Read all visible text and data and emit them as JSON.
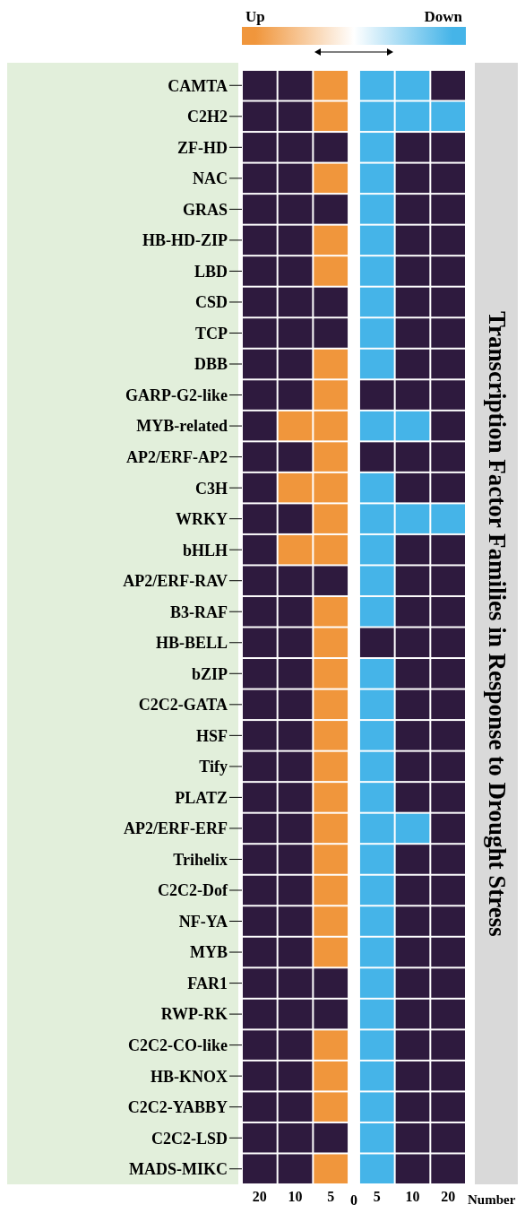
{
  "chart_data": {
    "type": "heatmap",
    "xlabel": "Number",
    "ylabel": "Transcription Factor Families in Response to Drought Stress",
    "annotations": [
      "0"
    ],
    "categories": [
      "20",
      "10",
      "5",
      "5",
      "10",
      "20"
    ],
    "y_categories": [
      "CAMTA",
      "C2H2",
      "ZF-HD",
      "NAC",
      "GRAS",
      "HB-HD-ZIP",
      "LBD",
      "CSD",
      "TCP",
      "DBB",
      "GARP-G2-like",
      "MYB-related",
      "AP2/ERF-AP2",
      "C3H",
      "WRKY",
      "bHLH",
      "AP2/ERF-RAV",
      "B3-RAF",
      "HB-BELL",
      "bZIP",
      "C2C2-GATA",
      "HSF",
      "Tify",
      "PLATZ",
      "AP2/ERF-ERF",
      "Trihelix",
      "C2C2-Dof",
      "NF-YA",
      "MYB",
      "FAR1",
      "RWP-RK",
      "C2C2-CO-like",
      "HB-KNOX",
      "C2C2-YABBY",
      "C2C2-LSD",
      "MADS-MIKC"
    ],
    "cells": [
      [
        null,
        null,
        1,
        -1,
        -1,
        null
      ],
      [
        null,
        null,
        1,
        -1,
        -1,
        -1
      ],
      [
        null,
        null,
        null,
        -1,
        null,
        null
      ],
      [
        null,
        null,
        1,
        -1,
        null,
        null
      ],
      [
        null,
        null,
        null,
        -1,
        null,
        null
      ],
      [
        null,
        null,
        1,
        -1,
        null,
        null
      ],
      [
        null,
        null,
        1,
        -1,
        null,
        null
      ],
      [
        null,
        null,
        null,
        -1,
        null,
        null
      ],
      [
        null,
        null,
        null,
        -1,
        null,
        null
      ],
      [
        null,
        null,
        1,
        -1,
        null,
        null
      ],
      [
        null,
        null,
        1,
        null,
        null,
        null
      ],
      [
        null,
        1,
        1,
        -1,
        -1,
        null
      ],
      [
        null,
        null,
        1,
        null,
        null,
        null
      ],
      [
        null,
        1,
        1,
        -1,
        null,
        null
      ],
      [
        null,
        null,
        1,
        -1,
        -1,
        -1
      ],
      [
        null,
        1,
        1,
        -1,
        null,
        null
      ],
      [
        null,
        null,
        null,
        -1,
        null,
        null
      ],
      [
        null,
        null,
        1,
        -1,
        null,
        null
      ],
      [
        null,
        null,
        1,
        null,
        null,
        null
      ],
      [
        null,
        null,
        1,
        -1,
        null,
        null
      ],
      [
        null,
        null,
        1,
        -1,
        null,
        null
      ],
      [
        null,
        null,
        1,
        -1,
        null,
        null
      ],
      [
        null,
        null,
        1,
        -1,
        null,
        null
      ],
      [
        null,
        null,
        1,
        -1,
        null,
        null
      ],
      [
        null,
        null,
        1,
        -1,
        -1,
        null
      ],
      [
        null,
        null,
        1,
        -1,
        null,
        null
      ],
      [
        null,
        null,
        1,
        -1,
        null,
        null
      ],
      [
        null,
        null,
        1,
        -1,
        null,
        null
      ],
      [
        null,
        null,
        1,
        -1,
        null,
        null
      ],
      [
        null,
        null,
        null,
        -1,
        null,
        null
      ],
      [
        null,
        null,
        null,
        -1,
        null,
        null
      ],
      [
        null,
        null,
        1,
        -1,
        null,
        null
      ],
      [
        null,
        null,
        1,
        -1,
        null,
        null
      ],
      [
        null,
        null,
        1,
        -1,
        null,
        null
      ],
      [
        null,
        null,
        null,
        -1,
        null,
        null
      ],
      [
        null,
        null,
        1,
        -1,
        null,
        null
      ]
    ],
    "clim": [
      1,
      -1
    ],
    "cticks": [
      {
        "value": 1,
        "label": "Up"
      },
      {
        "value": -1,
        "label": "Down"
      }
    ]
  }
}
